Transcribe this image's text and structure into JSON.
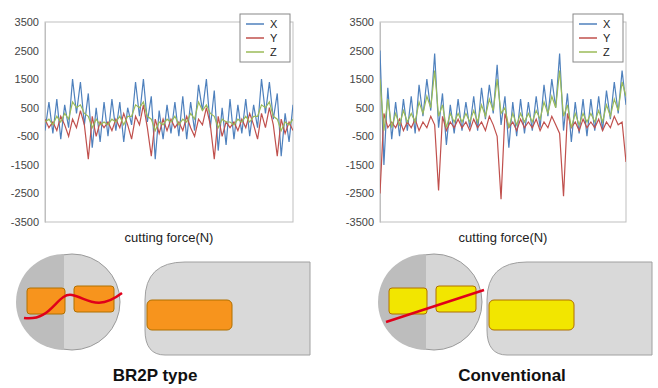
{
  "chart_data": [
    {
      "type": "line",
      "x_label": "cutting force(N)",
      "ylim": [
        -3500,
        3500
      ],
      "yticks": [
        -3500,
        -2500,
        -1500,
        -500,
        500,
        1500,
        2500,
        3500
      ],
      "legend": "top-right",
      "tick_labels": "y",
      "grid": false,
      "series": [
        {
          "name": "X",
          "color": "#4f81bd",
          "values": [
            -300,
            700,
            -400,
            800,
            -600,
            600,
            -200,
            1500,
            300,
            1400,
            -100,
            1000,
            -900,
            500,
            -700,
            700,
            -500,
            800,
            -300,
            700,
            -700,
            500,
            -100,
            1400,
            200,
            1500,
            0,
            900,
            -1300,
            400,
            -600,
            600,
            -400,
            700,
            -500,
            900,
            -600,
            700,
            -300,
            1300,
            400,
            1500,
            -200,
            1100,
            -1000,
            500,
            -800,
            800,
            -600,
            600,
            -400,
            800,
            -500,
            600,
            -200,
            1500,
            300,
            1400,
            100,
            1000,
            -1200,
            300,
            -700,
            600
          ]
        },
        {
          "name": "Y",
          "color": "#c0504d",
          "values": [
            100,
            -200,
            0,
            -300,
            200,
            -100,
            -500,
            100,
            -200,
            400,
            -100,
            -1300,
            200,
            -500,
            0,
            -200,
            0,
            -300,
            100,
            -200,
            300,
            -100,
            -600,
            200,
            -100,
            600,
            -200,
            -1200,
            100,
            -400,
            100,
            -300,
            100,
            -200,
            0,
            -300,
            200,
            -200,
            -500,
            100,
            -100,
            500,
            -100,
            -1300,
            200,
            -500,
            0,
            -200,
            0,
            -300,
            100,
            -200,
            300,
            -100,
            -600,
            300,
            -200,
            500,
            -100,
            -1200,
            100,
            -400,
            0,
            -300
          ]
        },
        {
          "name": "Z",
          "color": "#9bbb59",
          "values": [
            0,
            100,
            -100,
            200,
            0,
            300,
            100,
            700,
            500,
            600,
            300,
            200,
            -200,
            100,
            -100,
            0,
            -100,
            100,
            0,
            200,
            -100,
            200,
            200,
            600,
            500,
            700,
            200,
            100,
            -300,
            0,
            -100,
            100,
            0,
            200,
            -100,
            100,
            0,
            300,
            100,
            700,
            400,
            600,
            300,
            200,
            -200,
            100,
            0,
            0,
            -100,
            100,
            0,
            200,
            0,
            200,
            200,
            600,
            500,
            700,
            200,
            100,
            -300,
            0,
            -100,
            100
          ]
        }
      ]
    },
    {
      "type": "line",
      "x_label": "cutting force(N)",
      "ylim": [
        -3500,
        3500
      ],
      "yticks": [
        -3500,
        -2500,
        -1500,
        -500,
        500,
        1500,
        2500,
        3500
      ],
      "legend": "top-right",
      "tick_labels": "y",
      "grid": false,
      "series": [
        {
          "name": "X",
          "color": "#4f81bd",
          "values": [
            2500,
            -1500,
            1200,
            -600,
            700,
            -500,
            800,
            -300,
            900,
            -400,
            1300,
            200,
            1500,
            400,
            2400,
            -200,
            1000,
            -800,
            600,
            -400,
            800,
            -300,
            700,
            -200,
            900,
            -300,
            1200,
            100,
            1300,
            300,
            2000,
            -100,
            900,
            -900,
            700,
            -500,
            800,
            -400,
            700,
            -300,
            900,
            -200,
            1300,
            200,
            1500,
            500,
            2400,
            -300,
            1000,
            -700,
            700,
            -400,
            800,
            -500,
            800,
            -300,
            900,
            -300,
            1100,
            100,
            1400,
            300,
            1800,
            600
          ]
        },
        {
          "name": "Y",
          "color": "#c0504d",
          "values": [
            -2500,
            300,
            -200,
            0,
            -200,
            100,
            -300,
            0,
            -200,
            100,
            -300,
            0,
            -200,
            200,
            -100,
            -2400,
            200,
            -300,
            0,
            -200,
            100,
            -200,
            0,
            -300,
            100,
            -200,
            0,
            -300,
            200,
            -100,
            -500,
            -2700,
            300,
            -200,
            0,
            -300,
            100,
            -200,
            0,
            -200,
            100,
            -300,
            0,
            -200,
            200,
            -100,
            -400,
            -2600,
            300,
            -200,
            0,
            -300,
            100,
            -200,
            0,
            -200,
            100,
            -300,
            0,
            -200,
            200,
            -100,
            0,
            -1400
          ]
        },
        {
          "name": "Z",
          "color": "#9bbb59",
          "values": [
            1500,
            -300,
            800,
            -200,
            300,
            -100,
            400,
            0,
            300,
            0,
            700,
            300,
            900,
            500,
            1800,
            200,
            600,
            -200,
            300,
            0,
            300,
            0,
            300,
            0,
            400,
            0,
            600,
            200,
            800,
            400,
            1500,
            300,
            500,
            -200,
            300,
            -100,
            300,
            0,
            300,
            0,
            400,
            100,
            700,
            300,
            900,
            500,
            1800,
            200,
            600,
            -200,
            300,
            -100,
            300,
            0,
            300,
            0,
            400,
            0,
            600,
            200,
            800,
            400,
            1400,
            900
          ]
        }
      ]
    }
  ],
  "captions": [
    "BR2P type",
    "Conventional"
  ]
}
